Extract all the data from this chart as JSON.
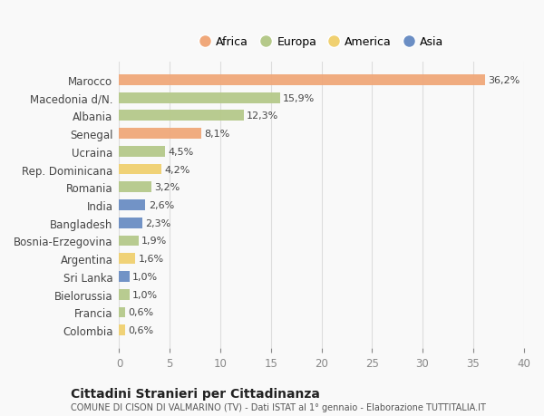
{
  "countries": [
    "Marocco",
    "Macedonia d/N.",
    "Albania",
    "Senegal",
    "Ucraina",
    "Rep. Dominicana",
    "Romania",
    "India",
    "Bangladesh",
    "Bosnia-Erzegovina",
    "Argentina",
    "Sri Lanka",
    "Bielorussia",
    "Francia",
    "Colombia"
  ],
  "values": [
    36.2,
    15.9,
    12.3,
    8.1,
    4.5,
    4.2,
    3.2,
    2.6,
    2.3,
    1.9,
    1.6,
    1.0,
    1.0,
    0.6,
    0.6
  ],
  "labels": [
    "36,2%",
    "15,9%",
    "12,3%",
    "8,1%",
    "4,5%",
    "4,2%",
    "3,2%",
    "2,6%",
    "2,3%",
    "1,9%",
    "1,6%",
    "1,0%",
    "1,0%",
    "0,6%",
    "0,6%"
  ],
  "continents": [
    "Africa",
    "Europa",
    "Europa",
    "Africa",
    "Europa",
    "America",
    "Europa",
    "Asia",
    "Asia",
    "Europa",
    "America",
    "Asia",
    "Europa",
    "Europa",
    "America"
  ],
  "continent_colors": {
    "Africa": "#F0A87A",
    "Europa": "#B5C98A",
    "America": "#F0D070",
    "Asia": "#6B8EC4"
  },
  "legend_order": [
    "Africa",
    "Europa",
    "America",
    "Asia"
  ],
  "title": "Cittadini Stranieri per Cittadinanza",
  "subtitle": "COMUNE DI CISON DI VALMARINO (TV) - Dati ISTAT al 1° gennaio - Elaborazione TUTTITALIA.IT",
  "xlim": [
    0,
    40
  ],
  "xticks": [
    0,
    5,
    10,
    15,
    20,
    25,
    30,
    35,
    40
  ],
  "background_color": "#f9f9f9",
  "grid_color": "#dddddd"
}
